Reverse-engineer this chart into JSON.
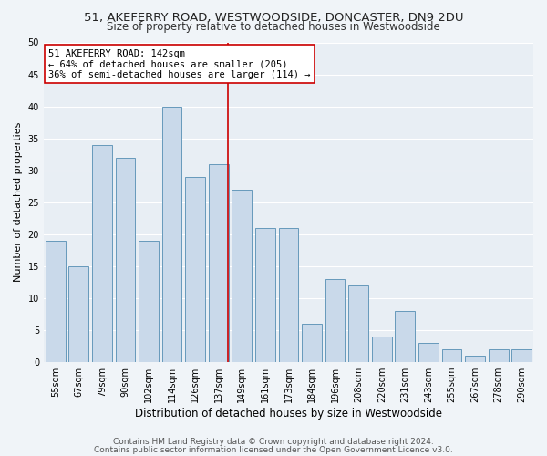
{
  "title": "51, AKEFERRY ROAD, WESTWOODSIDE, DONCASTER, DN9 2DU",
  "subtitle": "Size of property relative to detached houses in Westwoodside",
  "xlabel": "Distribution of detached houses by size in Westwoodside",
  "ylabel": "Number of detached properties",
  "categories": [
    "55sqm",
    "67sqm",
    "79sqm",
    "90sqm",
    "102sqm",
    "114sqm",
    "126sqm",
    "137sqm",
    "149sqm",
    "161sqm",
    "173sqm",
    "184sqm",
    "196sqm",
    "208sqm",
    "220sqm",
    "231sqm",
    "243sqm",
    "255sqm",
    "267sqm",
    "278sqm",
    "290sqm"
  ],
  "values": [
    19,
    15,
    34,
    32,
    19,
    40,
    29,
    31,
    27,
    21,
    21,
    6,
    13,
    12,
    4,
    8,
    3,
    2,
    1,
    2,
    2
  ],
  "bar_color": "#c9d9ea",
  "bar_edge_color": "#6699bb",
  "vline_color": "#cc0000",
  "annotation_box_edge_color": "#cc0000",
  "background_color": "#e8eef4",
  "grid_color": "#ffffff",
  "ylim": [
    0,
    50
  ],
  "yticks": [
    0,
    5,
    10,
    15,
    20,
    25,
    30,
    35,
    40,
    45,
    50
  ],
  "vline_x_index": 7.4,
  "vline_label": "51 AKEFERRY ROAD: 142sqm",
  "annotation_line1": "← 64% of detached houses are smaller (205)",
  "annotation_line2": "36% of semi-detached houses are larger (114) →",
  "title_fontsize": 9.5,
  "subtitle_fontsize": 8.5,
  "xlabel_fontsize": 8.5,
  "ylabel_fontsize": 8,
  "tick_fontsize": 7,
  "annotation_fontsize": 7.5,
  "footer_fontsize": 6.5,
  "footer1": "Contains HM Land Registry data © Crown copyright and database right 2024.",
  "footer2": "Contains public sector information licensed under the Open Government Licence v3.0."
}
